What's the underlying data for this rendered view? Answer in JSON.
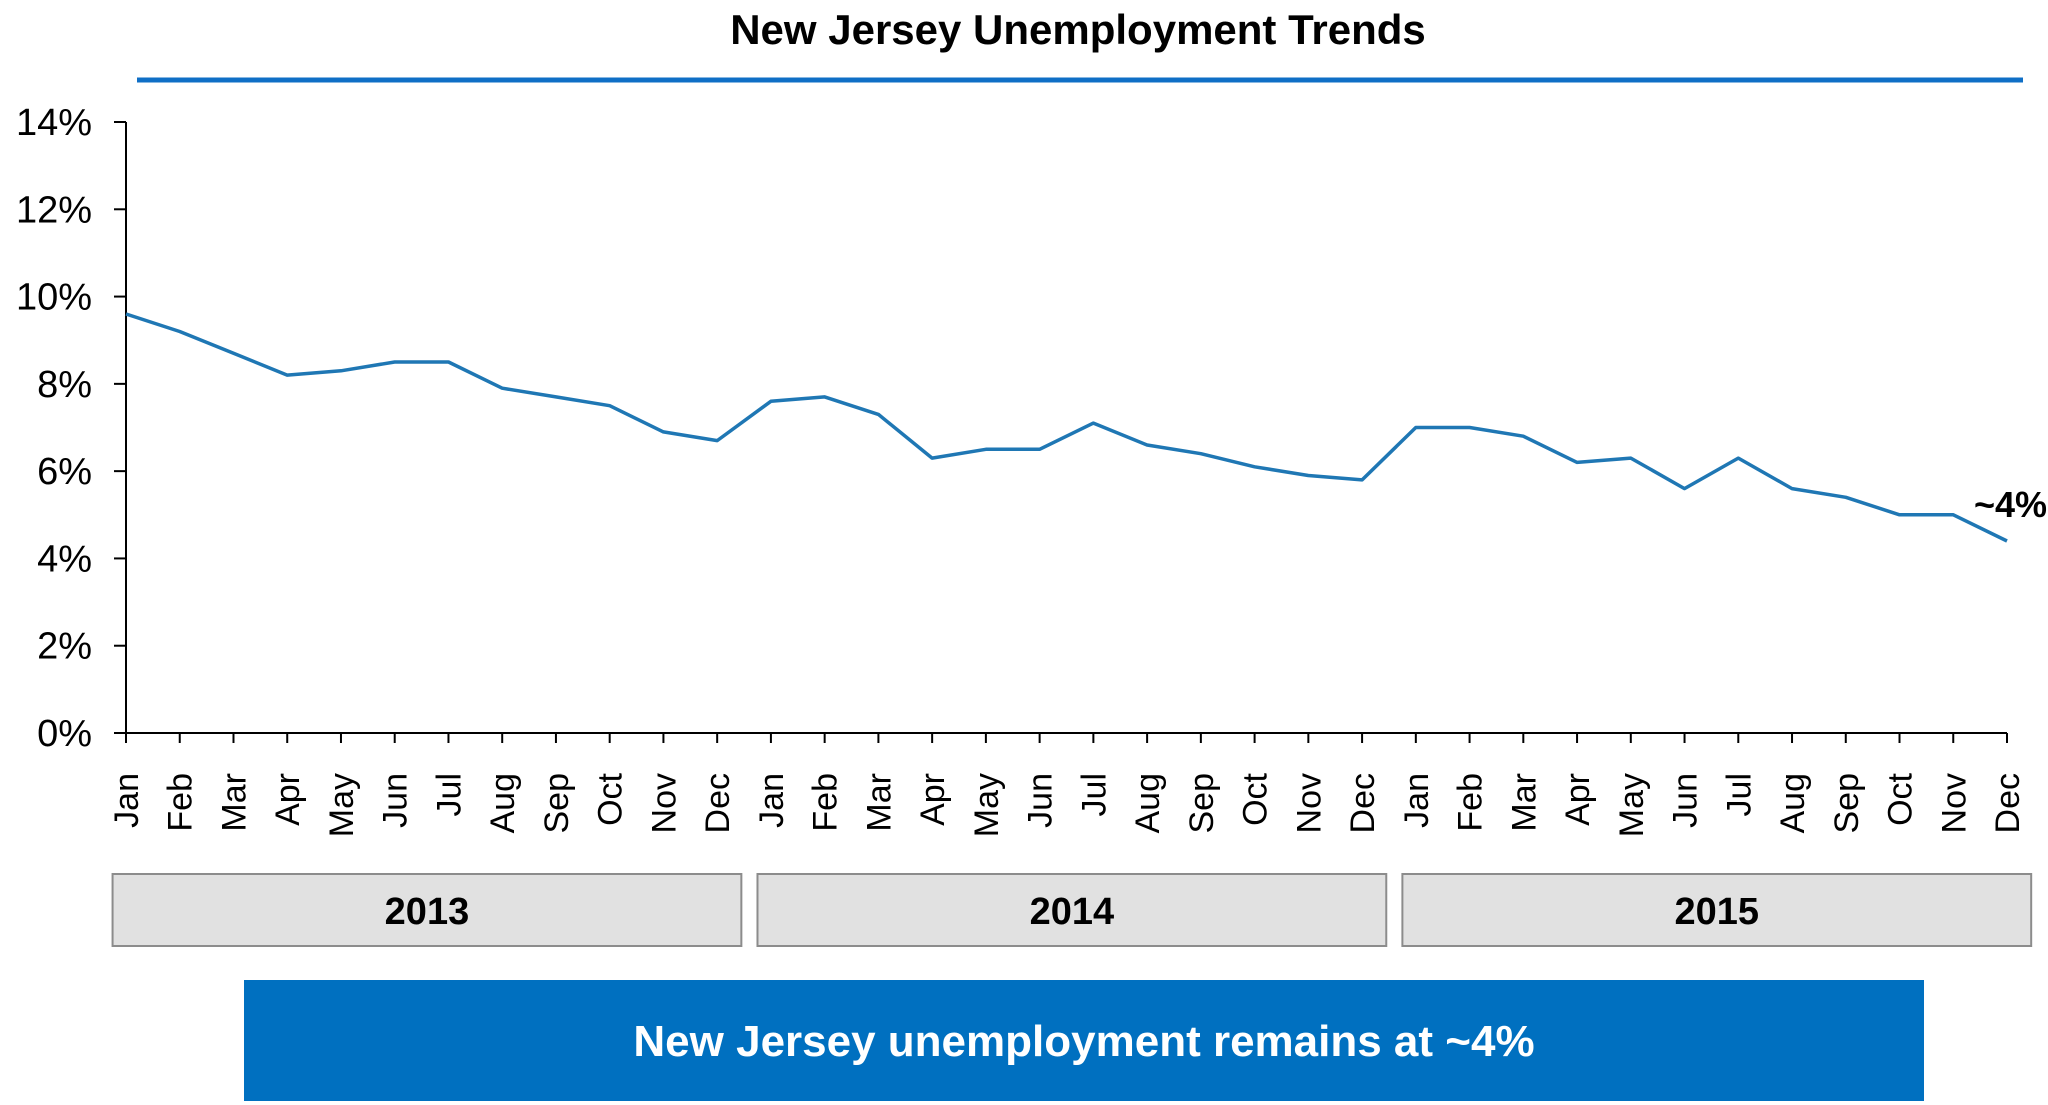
{
  "colors": {
    "line": "#1f77b4",
    "rule": "#0f6fc6",
    "callout_bg": "#0070c0",
    "year_box": "#e1e1e1"
  },
  "chart_data": {
    "type": "line",
    "title": "New Jersey Unemployment Trends",
    "ylim": [
      0,
      14
    ],
    "yticks": [
      "0%",
      "2%",
      "4%",
      "6%",
      "8%",
      "10%",
      "12%",
      "14%"
    ],
    "categories": [
      "Jan",
      "Feb",
      "Mar",
      "Apr",
      "May",
      "Jun",
      "Jul",
      "Aug",
      "Sep",
      "Oct",
      "Nov",
      "Dec",
      "Jan",
      "Feb",
      "Mar",
      "Apr",
      "May",
      "Jun",
      "Jul",
      "Aug",
      "Sep",
      "Oct",
      "Nov",
      "Dec",
      "Jan",
      "Feb",
      "Mar",
      "Apr",
      "May",
      "Jun",
      "Jul",
      "Aug",
      "Sep",
      "Oct",
      "Nov",
      "Dec"
    ],
    "series": [
      {
        "values": [
          9.6,
          9.2,
          8.7,
          8.2,
          8.3,
          8.5,
          8.5,
          7.9,
          7.7,
          7.5,
          6.9,
          6.7,
          7.6,
          7.7,
          7.3,
          6.3,
          6.5,
          6.5,
          7.1,
          6.6,
          6.4,
          6.1,
          5.9,
          5.8,
          7.0,
          7.0,
          6.8,
          6.2,
          6.3,
          5.6,
          6.3,
          5.6,
          5.4,
          5.0,
          5.0,
          4.4
        ]
      }
    ],
    "groups": [
      {
        "label": "2013",
        "start": 0,
        "end": 11
      },
      {
        "label": "2014",
        "start": 12,
        "end": 23
      },
      {
        "label": "2015",
        "start": 24,
        "end": 35
      }
    ],
    "end_label": "~4%",
    "grid": false
  },
  "callout": {
    "text": "New Jersey unemployment remains at ~4%"
  }
}
